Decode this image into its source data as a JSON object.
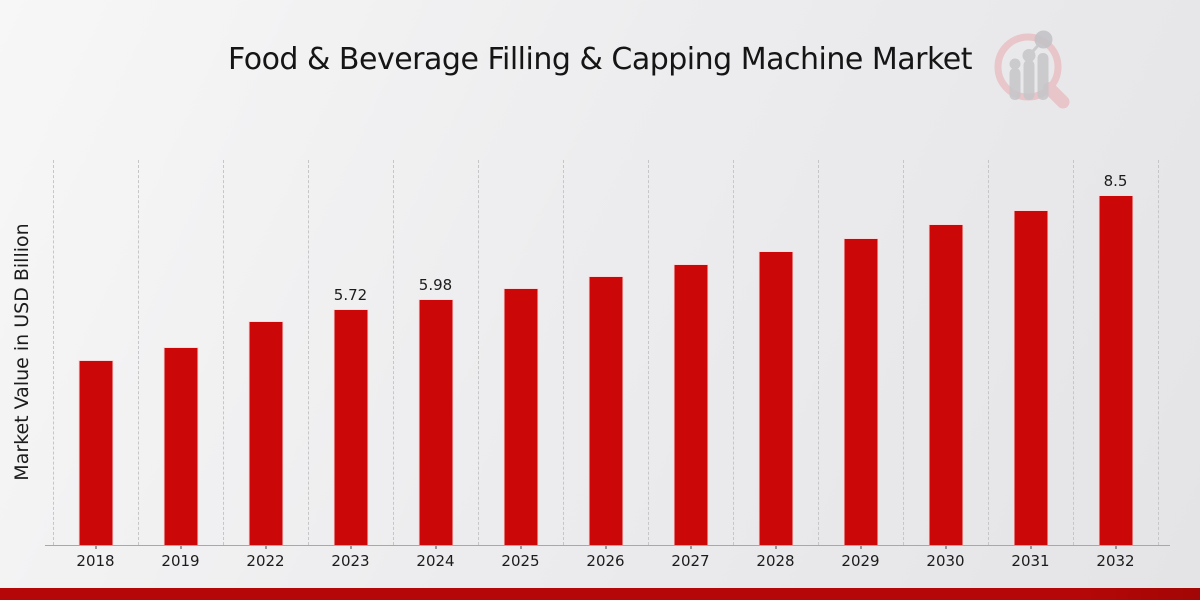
{
  "title": "Food & Beverage Filling & Capping Machine Market",
  "ylabel": "Market Value in USD Billion",
  "logo": {
    "name": "magnifier-growth-chart-watermark",
    "ring_color": "#e7c3c6",
    "bar_color": "#c6c6ca"
  },
  "colors": {
    "bar": "#cc0707",
    "bottom_band": "#b50707",
    "background_start": "#f7f7f7",
    "background_end": "#e4e4e6",
    "gridline": "#c6c6c6",
    "axis_line": "#a8a8a8",
    "text": "#1c1c1c"
  },
  "chart_data": {
    "type": "bar",
    "title": "Food & Beverage Filling & Capping Machine Market",
    "xlabel": "",
    "ylabel": "Market Value in USD Billion",
    "categories": [
      "2018",
      "2019",
      "2022",
      "2023",
      "2024",
      "2025",
      "2026",
      "2027",
      "2028",
      "2029",
      "2030",
      "2031",
      "2032"
    ],
    "values": [
      4.5,
      4.8,
      5.45,
      5.72,
      5.98,
      6.25,
      6.53,
      6.83,
      7.13,
      7.45,
      7.79,
      8.14,
      8.5
    ],
    "data_labels": {
      "2023": "5.72",
      "2024": "5.98",
      "2032": "8.5"
    },
    "ylim": [
      0,
      9.35
    ],
    "grid": "vertical dashed band separators",
    "legend": "none",
    "bar_color": "#cc0707"
  }
}
